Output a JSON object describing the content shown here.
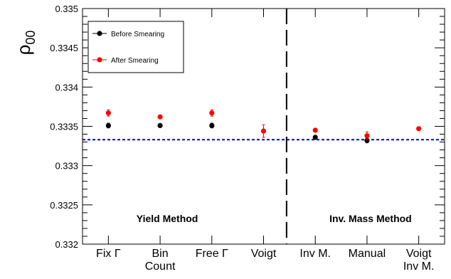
{
  "chart_data": {
    "type": "scatter",
    "ylabel_main": "ρ",
    "ylabel_sub": "00",
    "ylim": [
      0.332,
      0.335
    ],
    "yticks": [
      "0.335",
      "0.3345",
      "0.334",
      "0.3335",
      "0.333",
      "0.3325",
      "0.332"
    ],
    "categories": [
      {
        "line1": "Fix Γ",
        "line2": ""
      },
      {
        "line1": "Bin",
        "line2": "Count"
      },
      {
        "line1": "Free Γ",
        "line2": ""
      },
      {
        "line1": "Voigt",
        "line2": ""
      },
      {
        "line1": "Inv M.",
        "line2": ""
      },
      {
        "line1": "Manual",
        "line2": ""
      },
      {
        "line1": "Voigt",
        "line2": "Inv M."
      }
    ],
    "series": [
      {
        "name": "Before Smearing",
        "color": "#000000",
        "points": [
          {
            "x": 0,
            "y": 0.33351,
            "err": 3e-05
          },
          {
            "x": 1,
            "y": 0.33351,
            "err": 2e-05
          },
          {
            "x": 2,
            "y": 0.33351,
            "err": 3e-05
          },
          {
            "x": 4,
            "y": 0.33336,
            "err": 2e-05
          },
          {
            "x": 5,
            "y": 0.33332,
            "err": 3e-05
          }
        ]
      },
      {
        "name": "After Smearing",
        "color": "#ff0000",
        "points": [
          {
            "x": 0,
            "y": 0.33367,
            "err": 4e-05
          },
          {
            "x": 1,
            "y": 0.33362,
            "err": 2e-05
          },
          {
            "x": 2,
            "y": 0.33367,
            "err": 4e-05
          },
          {
            "x": 3,
            "y": 0.33344,
            "err": 8e-05
          },
          {
            "x": 4,
            "y": 0.33345,
            "err": 2e-05
          },
          {
            "x": 5,
            "y": 0.33338,
            "err": 5e-05
          },
          {
            "x": 6,
            "y": 0.33347,
            "err": 2e-05
          }
        ]
      }
    ],
    "reference_line": {
      "y": 0.33333,
      "color": "#0000ff",
      "style": "dashed"
    },
    "divider": {
      "after_category": 3,
      "style": "long-dash"
    },
    "annotations": [
      "Yield Method",
      "Inv. Mass Method"
    ],
    "legend": {
      "placement": "top-left"
    },
    "grid": false
  }
}
